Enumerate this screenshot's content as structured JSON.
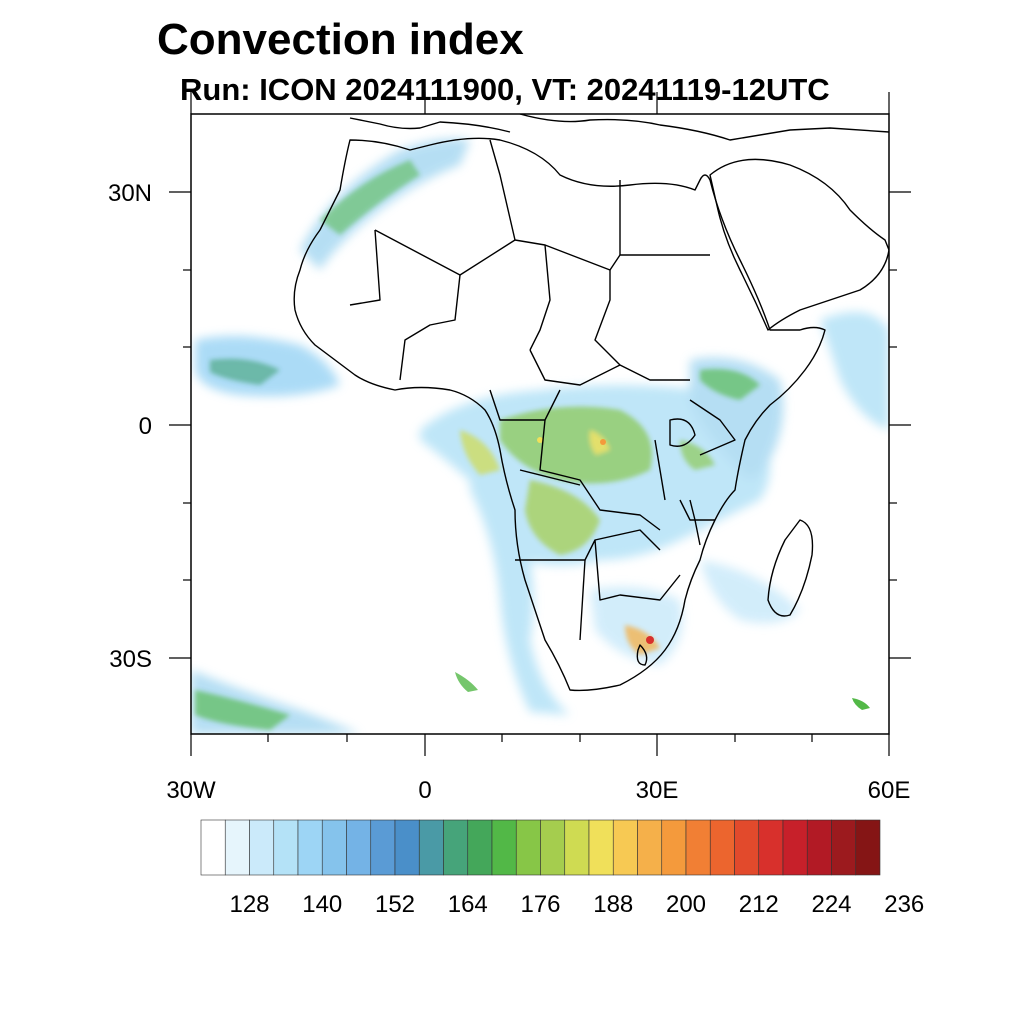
{
  "header": {
    "title": "Convection index",
    "subtitle": "Run: ICON 2024111900,  VT: 20241119-12UTC"
  },
  "axes": {
    "lat_labels": [
      "30N",
      "0",
      "30S"
    ],
    "lon_labels": [
      "30W",
      "0",
      "30E",
      "60E"
    ]
  },
  "colorbar": {
    "labels": [
      "128",
      "140",
      "152",
      "164",
      "176",
      "188",
      "200",
      "212",
      "224",
      "236"
    ],
    "colors": [
      "#ffffff",
      "#e6f5fc",
      "#cbeafa",
      "#b4e2f7",
      "#9dd5f5",
      "#85c3ec",
      "#74b3e6",
      "#5a9bd5",
      "#4a8fc9",
      "#4a9aa6",
      "#46a47a",
      "#44a75a",
      "#52b847",
      "#87c647",
      "#a5cd4e",
      "#cfdb52",
      "#f0e05a",
      "#f7c953",
      "#f5b04a",
      "#f49a3c",
      "#f17f34",
      "#ec652e",
      "#e24a2c",
      "#d8302c",
      "#c7202a",
      "#b21a25",
      "#9c1a1e",
      "#851515"
    ]
  },
  "chart_data": {
    "type": "heatmap",
    "title": "Convection index",
    "subtitle": "Run: ICON 2024111900,  VT: 20241119-12UTC",
    "lon_range": [
      -30,
      60
    ],
    "lat_range": [
      -40,
      40
    ],
    "colorbar_min": 122,
    "colorbar_step": 4,
    "colorbar_ticks": [
      128,
      140,
      152,
      164,
      176,
      188,
      200,
      212,
      224,
      236
    ]
  }
}
